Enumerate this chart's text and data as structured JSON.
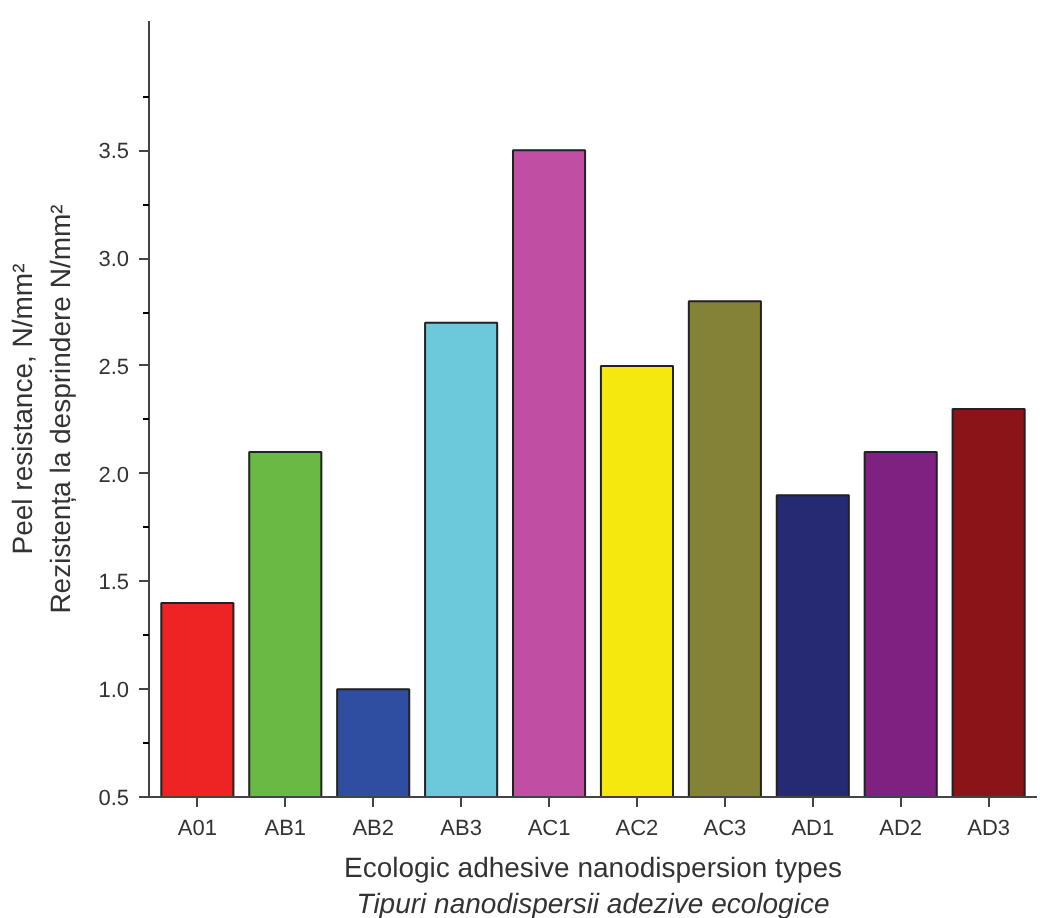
{
  "chart_data": {
    "type": "bar",
    "xlabel": "Ecologic adhesive nanodispersion types\nTipuri nanodispersii adezive ecologice",
    "ylabel": "Peel resistance, N/mm²\nRezistența la desprindere N/mm²",
    "categories": [
      "A01",
      "AB1",
      "AB2",
      "AB3",
      "AC1",
      "AC2",
      "AC3",
      "AD1",
      "AD2",
      "AD3"
    ],
    "values": [
      1.4,
      2.1,
      1.0,
      2.7,
      3.5,
      2.5,
      2.8,
      1.9,
      2.1,
      2.3
    ],
    "colors": [
      "#ee2424",
      "#6ab944",
      "#2f4ea2",
      "#6cc9db",
      "#c04fa3",
      "#f5e80e",
      "#838236",
      "#262a72",
      "#7e2181",
      "#8a1518"
    ],
    "ylim": [
      0.5,
      4.1
    ],
    "yticks": [
      0.5,
      {
        "value": 1,
        "label": "1.0"
      },
      1.5,
      {
        "value": 2,
        "label": "2.0"
      },
      2.5,
      {
        "value": 3,
        "label": "3.0"
      },
      3.5
    ],
    "grid": false
  }
}
